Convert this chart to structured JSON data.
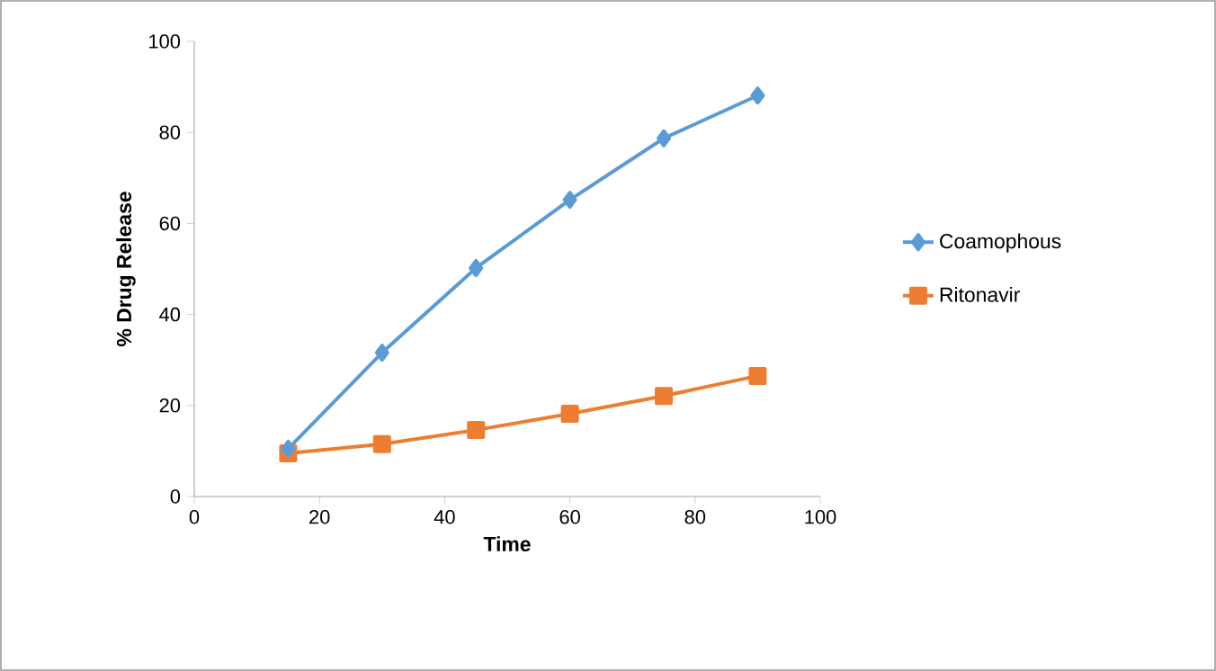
{
  "chart_data": {
    "type": "line",
    "xlabel": "Time",
    "ylabel": "% Drug Release",
    "x": [
      15,
      30,
      45,
      60,
      75,
      90
    ],
    "series": [
      {
        "name": "Coamophous",
        "color": "#5b9bd5",
        "marker": "diamond",
        "values": [
          10.5,
          31.6,
          50.2,
          65.2,
          78.7,
          88.1
        ]
      },
      {
        "name": "Ritonavir",
        "color": "#ed7d31",
        "marker": "square",
        "values": [
          9.5,
          11.5,
          14.6,
          18.2,
          22.1,
          26.5
        ]
      }
    ],
    "xlim": [
      0,
      100
    ],
    "ylim": [
      0,
      100
    ],
    "xticks": [
      0,
      20,
      40,
      60,
      80,
      100
    ],
    "yticks": [
      0,
      20,
      40,
      60,
      80,
      100
    ],
    "grid": false,
    "legend": "right",
    "line_style": "solid"
  }
}
